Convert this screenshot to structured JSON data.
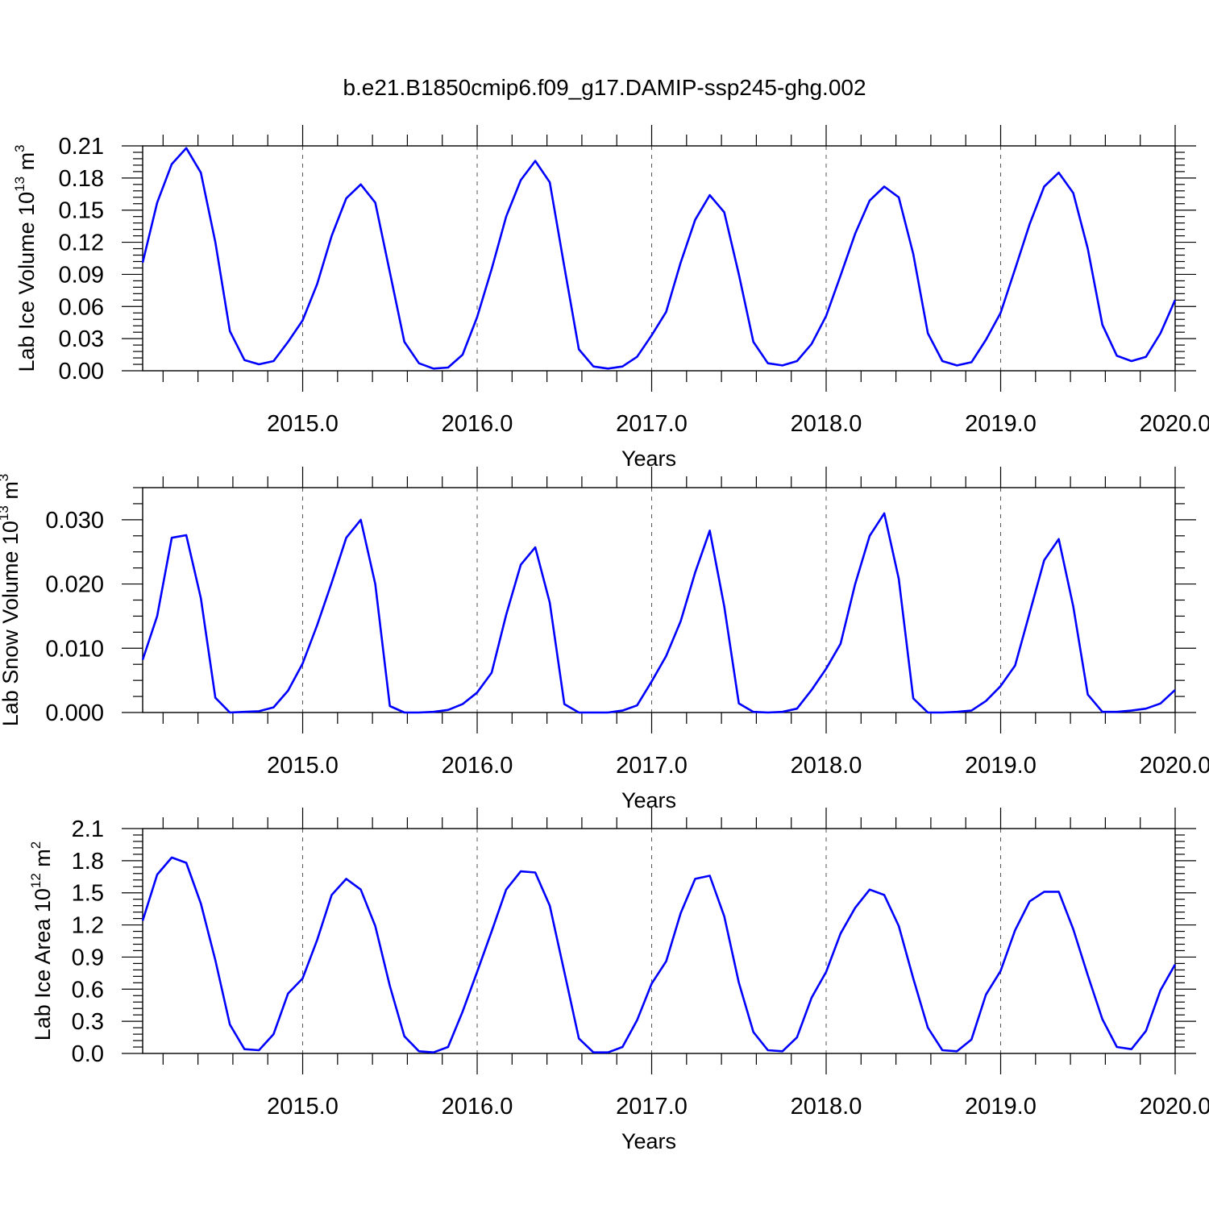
{
  "title": "b.e21.B1850cmip6.f09_g17.DAMIP-ssp245-ghg.002",
  "style": {
    "line_color": "#0000ff",
    "axis_color": "#000000",
    "grid_color": "#555555"
  },
  "chart_data": [
    {
      "type": "line",
      "ylabel": {
        "text": "Lab Ice Volume 10",
        "exp": "13",
        "unit": " m",
        "unit_exp": "3"
      },
      "xlabel": "Years",
      "xlim": [
        2014.083,
        2020.0
      ],
      "ylim": [
        0.0,
        0.21
      ],
      "xticks": [
        2015.0,
        2016.0,
        2017.0,
        2018.0,
        2019.0,
        2020.0
      ],
      "xtick_labels": [
        "2015.0",
        "2016.0",
        "2017.0",
        "2018.0",
        "2019.0",
        "2020.0"
      ],
      "yticks": [
        0.0,
        0.03,
        0.06,
        0.09,
        0.12,
        0.15,
        0.18,
        0.21
      ],
      "ytick_labels": [
        "0.00",
        "0.03",
        "0.06",
        "0.09",
        "0.12",
        "0.15",
        "0.18",
        "0.21"
      ],
      "grid": "vertical-dashed",
      "x_start": 2014.083,
      "x_step": 0.08333,
      "values": [
        0.101,
        0.157,
        0.193,
        0.208,
        0.185,
        0.12,
        0.037,
        0.01,
        0.006,
        0.009,
        0.027,
        0.047,
        0.081,
        0.126,
        0.161,
        0.174,
        0.157,
        0.092,
        0.027,
        0.007,
        0.002,
        0.003,
        0.015,
        0.05,
        0.095,
        0.144,
        0.178,
        0.196,
        0.176,
        0.097,
        0.02,
        0.004,
        0.002,
        0.004,
        0.013,
        0.033,
        0.055,
        0.101,
        0.141,
        0.164,
        0.148,
        0.09,
        0.027,
        0.007,
        0.005,
        0.009,
        0.025,
        0.051,
        0.089,
        0.128,
        0.159,
        0.172,
        0.162,
        0.109,
        0.035,
        0.009,
        0.005,
        0.008,
        0.029,
        0.054,
        0.095,
        0.137,
        0.172,
        0.185,
        0.166,
        0.114,
        0.043,
        0.014,
        0.009,
        0.013,
        0.035,
        0.066
      ]
    },
    {
      "type": "line",
      "ylabel": {
        "text": "Lab Snow Volume 10",
        "exp": "13",
        "unit": " m",
        "unit_exp": "3"
      },
      "xlabel": "Years",
      "xlim": [
        2014.083,
        2020.0
      ],
      "ylim": [
        0.0,
        0.035
      ],
      "xticks": [
        2015.0,
        2016.0,
        2017.0,
        2018.0,
        2019.0,
        2020.0
      ],
      "xtick_labels": [
        "2015.0",
        "2016.0",
        "2017.0",
        "2018.0",
        "2019.0",
        "2020.0"
      ],
      "yticks": [
        0.0,
        0.01,
        0.02,
        0.03
      ],
      "ytick_labels": [
        "0.000",
        "0.010",
        "0.020",
        "0.030"
      ],
      "minor_yticks": [
        0.0025,
        0.005,
        0.0075,
        0.0125,
        0.015,
        0.0175,
        0.0225,
        0.025,
        0.0275,
        0.0325,
        0.035
      ],
      "grid": "vertical-dashed",
      "x_start": 2014.083,
      "x_step": 0.08333,
      "values": [
        0.0082,
        0.015,
        0.0272,
        0.0276,
        0.0178,
        0.0023,
        0.0,
        0.0001,
        0.0002,
        0.0008,
        0.0034,
        0.0076,
        0.0136,
        0.0202,
        0.0272,
        0.03,
        0.02,
        0.001,
        0.0,
        0.0,
        0.0001,
        0.0004,
        0.0013,
        0.0031,
        0.0062,
        0.0152,
        0.023,
        0.0257,
        0.0171,
        0.0013,
        0.0,
        0.0,
        0.0,
        0.0003,
        0.0011,
        0.0048,
        0.0088,
        0.0142,
        0.0218,
        0.0283,
        0.0165,
        0.0014,
        0.0001,
        0.0,
        0.0001,
        0.0006,
        0.0035,
        0.0068,
        0.0107,
        0.02,
        0.0275,
        0.031,
        0.0208,
        0.0022,
        0.0,
        0.0,
        0.0001,
        0.0003,
        0.0018,
        0.0041,
        0.0073,
        0.0155,
        0.0237,
        0.027,
        0.0165,
        0.0028,
        0.0001,
        0.0001,
        0.0003,
        0.0006,
        0.0014,
        0.0035
      ]
    },
    {
      "type": "line",
      "ylabel": {
        "text": "Lab Ice Area 10",
        "exp": "12",
        "unit": " m",
        "unit_exp": "2"
      },
      "xlabel": "Years",
      "xlim": [
        2014.083,
        2020.0
      ],
      "ylim": [
        0.0,
        2.1
      ],
      "xticks": [
        2015.0,
        2016.0,
        2017.0,
        2018.0,
        2019.0,
        2020.0
      ],
      "xtick_labels": [
        "2015.0",
        "2016.0",
        "2017.0",
        "2018.0",
        "2019.0",
        "2020.0"
      ],
      "yticks": [
        0.0,
        0.3,
        0.6,
        0.9,
        1.2,
        1.5,
        1.8,
        2.1
      ],
      "ytick_labels": [
        "0.0",
        "0.3",
        "0.6",
        "0.9",
        "1.2",
        "1.5",
        "1.8",
        "2.1"
      ],
      "grid": "vertical-dashed",
      "x_start": 2014.083,
      "x_step": 0.08333,
      "values": [
        1.24,
        1.67,
        1.83,
        1.78,
        1.4,
        0.87,
        0.27,
        0.04,
        0.03,
        0.18,
        0.56,
        0.7,
        1.06,
        1.48,
        1.63,
        1.53,
        1.19,
        0.63,
        0.16,
        0.02,
        0.01,
        0.06,
        0.39,
        0.76,
        1.14,
        1.53,
        1.7,
        1.69,
        1.38,
        0.76,
        0.14,
        0.01,
        0.01,
        0.06,
        0.31,
        0.65,
        0.86,
        1.31,
        1.63,
        1.66,
        1.28,
        0.66,
        0.2,
        0.03,
        0.02,
        0.15,
        0.52,
        0.76,
        1.12,
        1.36,
        1.53,
        1.48,
        1.19,
        0.7,
        0.24,
        0.03,
        0.02,
        0.13,
        0.55,
        0.77,
        1.15,
        1.42,
        1.51,
        1.51,
        1.16,
        0.73,
        0.32,
        0.06,
        0.04,
        0.21,
        0.59,
        0.83
      ]
    }
  ]
}
